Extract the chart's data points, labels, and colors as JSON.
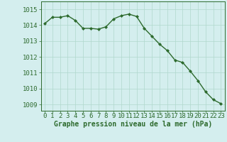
{
  "hours": [
    0,
    1,
    2,
    3,
    4,
    5,
    6,
    7,
    8,
    9,
    10,
    11,
    12,
    13,
    14,
    15,
    16,
    17,
    18,
    19,
    20,
    21,
    22,
    23
  ],
  "values": [
    1014.1,
    1014.5,
    1014.5,
    1014.6,
    1014.3,
    1013.8,
    1013.8,
    1013.75,
    1013.9,
    1014.4,
    1014.6,
    1014.7,
    1014.55,
    1013.8,
    1013.3,
    1012.8,
    1012.4,
    1011.8,
    1011.65,
    1011.1,
    1010.5,
    1009.8,
    1009.3,
    1009.05
  ],
  "line_color": "#2d6a2d",
  "marker": "D",
  "marker_size": 2.0,
  "bg_color": "#d4eeee",
  "grid_color": "#b0d8cc",
  "ylabel_ticks": [
    1009,
    1010,
    1011,
    1012,
    1013,
    1014,
    1015
  ],
  "ylim": [
    1008.6,
    1015.5
  ],
  "xlim": [
    -0.5,
    23.5
  ],
  "xlabel": "Graphe pression niveau de la mer (hPa)",
  "xlabel_fontsize": 7,
  "tick_fontsize": 6.5,
  "line_width": 1.0,
  "text_color": "#2d6a2d"
}
